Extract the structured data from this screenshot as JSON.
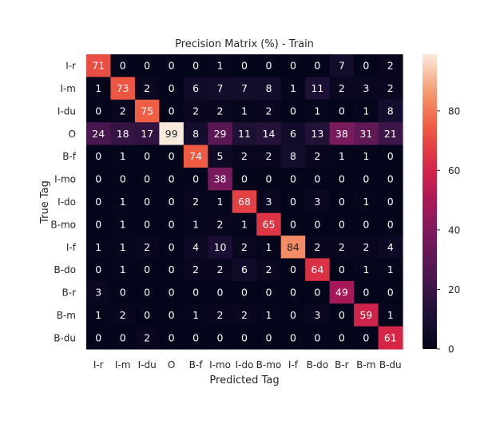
{
  "chart_data": {
    "type": "heatmap",
    "title": "Precision Matrix (%) - Train",
    "xlabel": "Predicted Tag",
    "ylabel": "True Tag",
    "x_labels": [
      "I-r",
      "I-m",
      "I-du",
      "O",
      "B-f",
      "I-mo",
      "I-do",
      "B-mo",
      "I-f",
      "B-do",
      "B-r",
      "B-m",
      "B-du"
    ],
    "y_labels": [
      "I-r",
      "I-m",
      "I-du",
      "O",
      "B-f",
      "I-mo",
      "I-do",
      "B-mo",
      "I-f",
      "B-do",
      "B-r",
      "B-m",
      "B-du"
    ],
    "values": [
      [
        71,
        0,
        0,
        0,
        0,
        1,
        0,
        0,
        0,
        0,
        7,
        0,
        2
      ],
      [
        1,
        73,
        2,
        0,
        6,
        7,
        7,
        8,
        1,
        11,
        2,
        3,
        2
      ],
      [
        0,
        2,
        75,
        0,
        2,
        2,
        1,
        2,
        0,
        1,
        0,
        1,
        8
      ],
      [
        24,
        18,
        17,
        99,
        8,
        29,
        11,
        14,
        6,
        13,
        38,
        31,
        21
      ],
      [
        0,
        1,
        0,
        0,
        74,
        5,
        2,
        2,
        8,
        2,
        1,
        1,
        0
      ],
      [
        0,
        0,
        0,
        0,
        0,
        38,
        0,
        0,
        0,
        0,
        0,
        0,
        0
      ],
      [
        0,
        1,
        0,
        0,
        2,
        1,
        68,
        3,
        0,
        3,
        0,
        1,
        0
      ],
      [
        0,
        1,
        0,
        0,
        1,
        2,
        1,
        65,
        0,
        0,
        0,
        0,
        0
      ],
      [
        1,
        1,
        2,
        0,
        4,
        10,
        2,
        1,
        84,
        2,
        2,
        2,
        4
      ],
      [
        0,
        1,
        0,
        0,
        2,
        2,
        6,
        2,
        0,
        64,
        0,
        1,
        1
      ],
      [
        3,
        0,
        0,
        0,
        0,
        0,
        0,
        0,
        0,
        0,
        49,
        0,
        0
      ],
      [
        1,
        2,
        0,
        0,
        1,
        2,
        2,
        1,
        0,
        3,
        0,
        59,
        1
      ],
      [
        0,
        0,
        2,
        0,
        0,
        0,
        0,
        0,
        0,
        0,
        0,
        0,
        61
      ]
    ],
    "vmin": 0,
    "vmax": 99,
    "colorbar_ticks": [
      0,
      20,
      40,
      60,
      80
    ],
    "colormap": "rocket",
    "grid": false
  }
}
